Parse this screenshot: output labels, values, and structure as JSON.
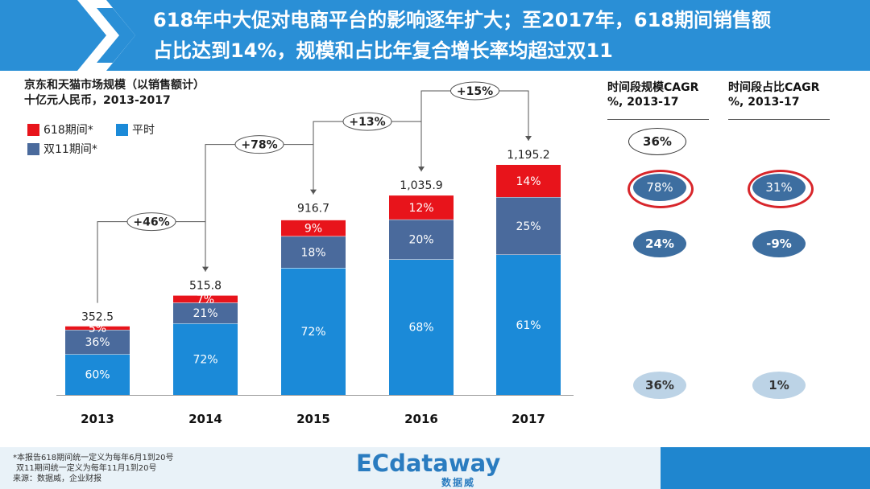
{
  "header": {
    "title_line1": "618年中大促对电商平台的影响逐年扩大；至2017年，618期间销售额",
    "title_line2": "占比达到14%，规模和占比年复合增长率均超过双11"
  },
  "subtitle": {
    "line1": "京东和天猫市场规模（以销售额计）",
    "line2": "十亿元人民币，2013-2017"
  },
  "colors": {
    "red": "#e8141b",
    "navy": "#4a6a9c",
    "blue": "#1b8ad8",
    "banner": "#2a8fd6"
  },
  "legend": [
    {
      "label": "618期间*",
      "color": "#e8141b"
    },
    {
      "label": "平时",
      "color": "#1b8ad8"
    },
    {
      "label": "双11期间*",
      "color": "#4a6a9c"
    }
  ],
  "chart_data": {
    "type": "bar",
    "stacked": true,
    "unit": "十亿元人民币",
    "categories": [
      "2013",
      "2014",
      "2015",
      "2016",
      "2017"
    ],
    "totals": [
      352.5,
      515.8,
      916.7,
      1035.9,
      1195.2
    ],
    "total_labels": [
      "352.5",
      "515.8",
      "916.7",
      "1,035.9",
      "1,195.2"
    ],
    "series": [
      {
        "name": "平时",
        "percent": [
          60,
          72,
          72,
          68,
          61
        ],
        "labels": [
          "60%",
          "72%",
          "72%",
          "68%",
          "61%"
        ]
      },
      {
        "name": "双11期间*",
        "percent": [
          36,
          21,
          18,
          20,
          25
        ],
        "labels": [
          "36%",
          "21%",
          "18%",
          "20%",
          "25%"
        ]
      },
      {
        "name": "618期间*",
        "percent": [
          5,
          7,
          9,
          12,
          14
        ],
        "labels": [
          "5%",
          "7%",
          "9%",
          "12%",
          "14%"
        ]
      }
    ],
    "growth": [
      {
        "from": "2013",
        "to": "2014",
        "label": "+46%"
      },
      {
        "from": "2014",
        "to": "2015",
        "label": "+78%"
      },
      {
        "from": "2015",
        "to": "2016",
        "label": "+13%"
      },
      {
        "from": "2016",
        "to": "2017",
        "label": "+15%"
      }
    ],
    "ylim": [
      0,
      1300
    ]
  },
  "cagr": {
    "scale_header": "时间段规模CAGR\n%, 2013-17",
    "share_header": "时间段占比CAGR\n%, 2013-17",
    "scale_values": [
      "36%",
      "78%",
      "24%",
      "36%"
    ],
    "share_values": [
      "31%",
      "-9%",
      "1%"
    ]
  },
  "footer": {
    "note1": "*本报告618期间统一定义为每年6月1到20号",
    "note2": "双11期间统一定义为每年11月1到20号",
    "note3": "来源：数据威，企业财报",
    "logo": "ECdataway",
    "logo_sub": "数据威"
  }
}
